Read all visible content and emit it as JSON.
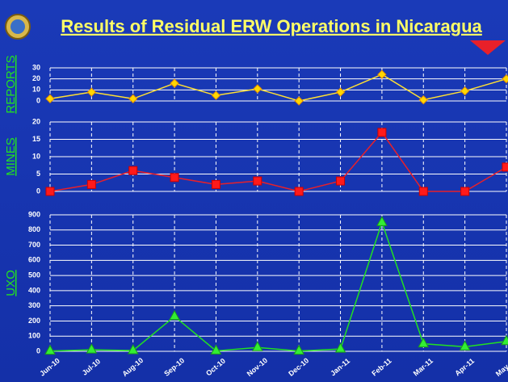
{
  "title": "Results of Residual ERW Operations in Nicaragua",
  "chart_data": [
    {
      "type": "line",
      "y_label": "REPORTS",
      "marker": "diamond",
      "color": "#ffe033",
      "marker_color": "#ffd700",
      "values": [
        2,
        8,
        2,
        16,
        5,
        11,
        0,
        8,
        24,
        1,
        9,
        20
      ],
      "ylim": [
        0,
        30
      ],
      "yticks": [
        0,
        10,
        20,
        30
      ],
      "grid": true
    },
    {
      "type": "line",
      "y_label": "MINES",
      "marker": "square",
      "color": "#e8202a",
      "marker_color": "#ff1a1a",
      "values": [
        0,
        2,
        6,
        4,
        2,
        3,
        0,
        3,
        17,
        0,
        0,
        7
      ],
      "ylim": [
        0,
        20
      ],
      "yticks": [
        0,
        5,
        10,
        15,
        20
      ],
      "grid": true
    },
    {
      "type": "line",
      "y_label": "UXO",
      "marker": "triangle",
      "color": "#22e022",
      "marker_color": "#33ee33",
      "categories": [
        "Jun-10",
        "Jul-10",
        "Aug-10",
        "Sep-10",
        "Oct-10",
        "Nov-10",
        "Dec-10",
        "Jan-11",
        "Feb-11",
        "Mar-11",
        "Apr-11",
        "May-11"
      ],
      "values": [
        2,
        10,
        5,
        230,
        3,
        25,
        2,
        15,
        850,
        50,
        30,
        65
      ],
      "ylim": [
        0,
        900
      ],
      "yticks": [
        0,
        100,
        200,
        300,
        400,
        500,
        600,
        700,
        800,
        900
      ],
      "grid": true
    }
  ]
}
